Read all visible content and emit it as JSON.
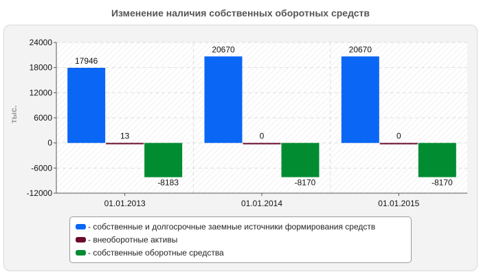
{
  "title": "Изменение наличия собственных оборотных средств",
  "chart_data": {
    "type": "bar",
    "title": "Изменение наличия собственных оборотных средств",
    "xlabel": "",
    "ylabel": "тыс.",
    "ylim": [
      -12000,
      24000
    ],
    "yticks": [
      24000,
      18000,
      12000,
      6000,
      0,
      -6000,
      -12000
    ],
    "grid": true,
    "legend_position": "bottom",
    "categories": [
      "01.01.2013",
      "01.01.2014",
      "01.01.2015"
    ],
    "series": [
      {
        "name": "- собственные и долгосрочные заемные источники формирования средств",
        "color": "#0a66f5",
        "values": [
          17946,
          20670,
          20670
        ]
      },
      {
        "name": "- внеоборотные активы",
        "color": "#6b0b2e",
        "values": [
          13,
          0,
          0
        ]
      },
      {
        "name": "- собственные оборотные средства",
        "color": "#018c32",
        "values": [
          -8183,
          -8170,
          -8170
        ]
      }
    ]
  }
}
